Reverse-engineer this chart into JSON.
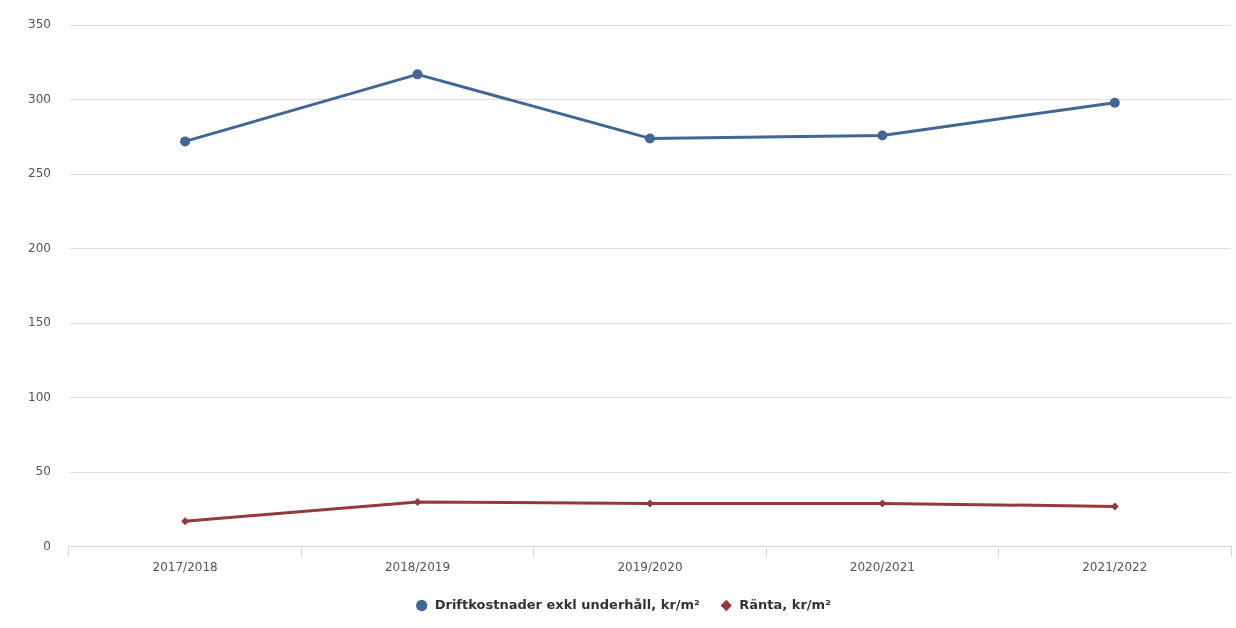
{
  "chart_data": {
    "type": "line",
    "categories": [
      "2017/2018",
      "2018/2019",
      "2019/2020",
      "2020/2021",
      "2021/2022"
    ],
    "series": [
      {
        "name": "Driftkostnader exkl underhåll, kr/m²",
        "color": "#426695",
        "marker": "circle",
        "values": [
          272,
          317,
          274,
          276,
          298
        ]
      },
      {
        "name": "Ränta, kr/m²",
        "color": "#94393a",
        "marker": "diamond",
        "values": [
          17,
          30,
          29,
          29,
          27
        ]
      }
    ],
    "ylim": [
      0,
      350
    ],
    "yticks": [
      0,
      50,
      100,
      150,
      200,
      250,
      300,
      350
    ],
    "grid": "y",
    "legend": "bottom",
    "line_style": "solid"
  }
}
